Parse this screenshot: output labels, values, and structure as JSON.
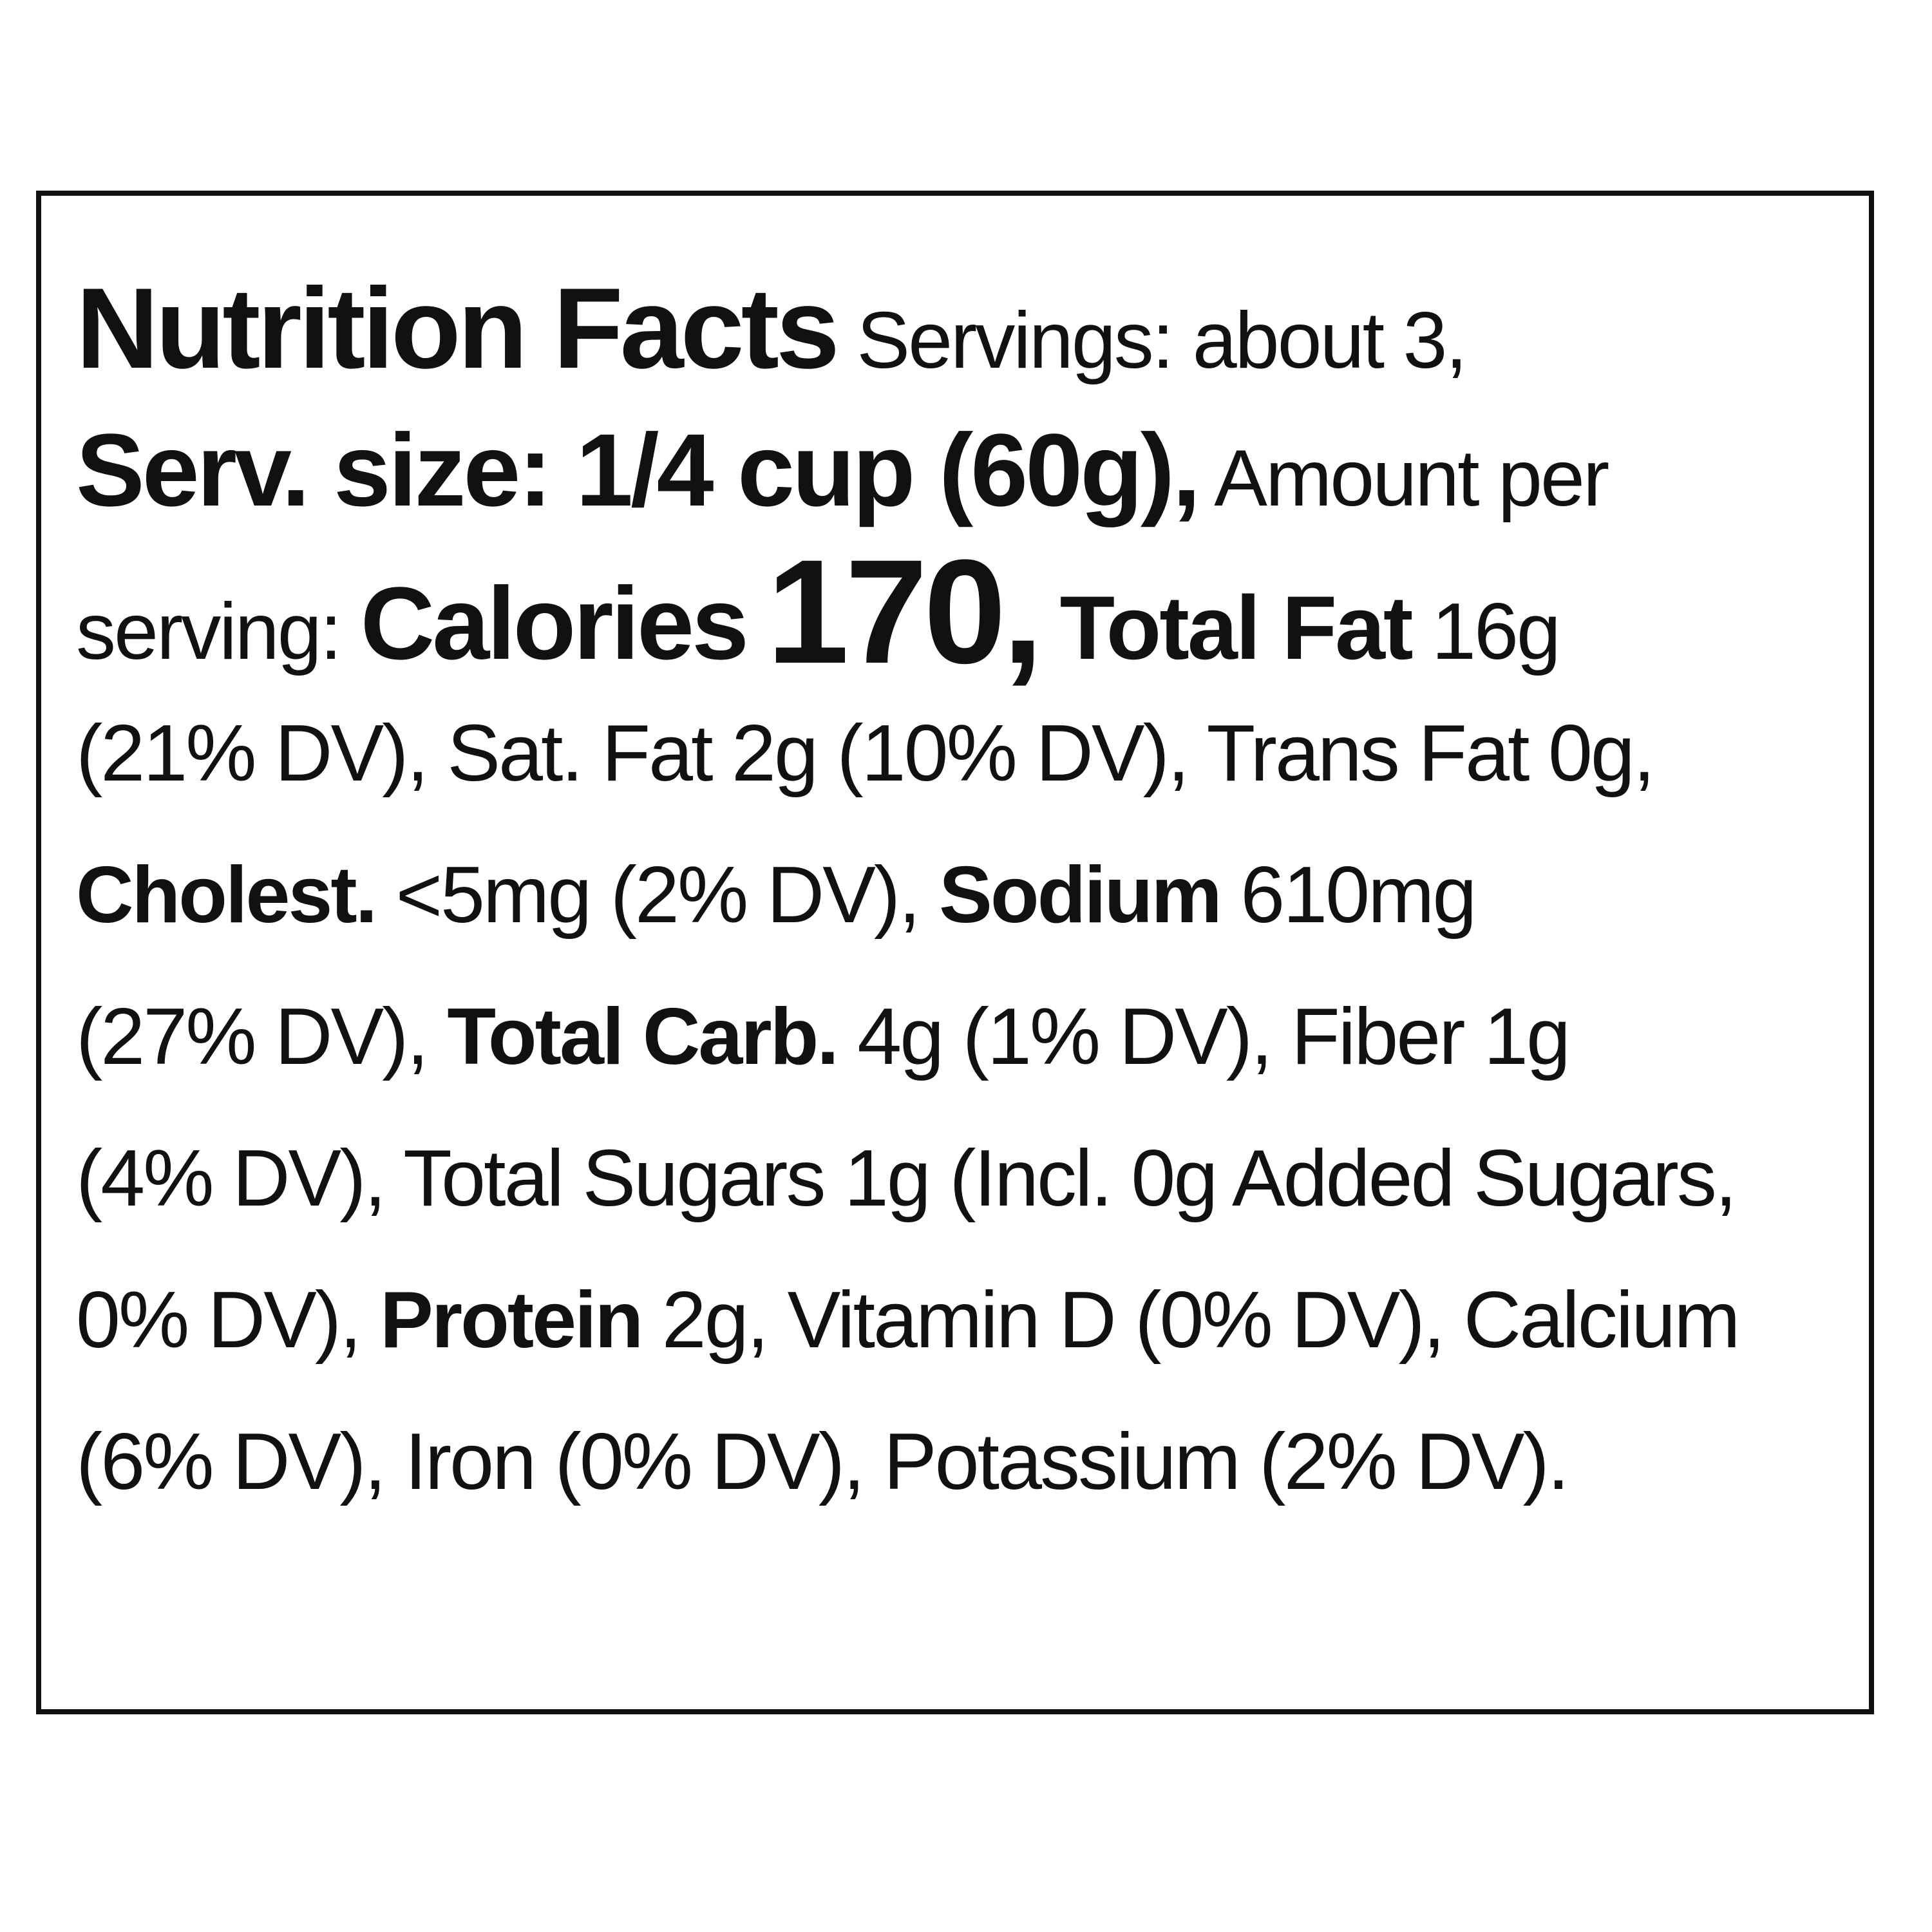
{
  "label": {
    "title": "Nutrition Facts",
    "servings": " Servings: about 3,",
    "serving_size": "Serv. size: 1/4 cup (60g),",
    "amount_per": " Amount per",
    "serving_prefix": "serving: ",
    "calories_label": "Calories",
    "calories_value": "170,",
    "total_fat_label": "Total Fat",
    "total_fat_value": " 16g",
    "line4": "(21% DV), Sat. Fat 2g (10% DV), Trans Fat 0g,",
    "cholest_label": "Cholest.",
    "cholest_value": " <5mg (2% DV), ",
    "sodium_label": "Sodium",
    "sodium_value": " 610mg",
    "line6_prefix": "(27% DV), ",
    "total_carb_label": "Total Carb.",
    "total_carb_value": " 4g (1% DV), Fiber 1g",
    "line7": "(4% DV), Total Sugars 1g (Incl. 0g Added Sugars,",
    "line8_prefix": "0% DV), ",
    "protein_label": "Protein",
    "protein_value": " 2g, Vitamin D (0% DV), Calcium",
    "line9": "(6% DV), Iron (0% DV), Potassium (2% DV)."
  }
}
